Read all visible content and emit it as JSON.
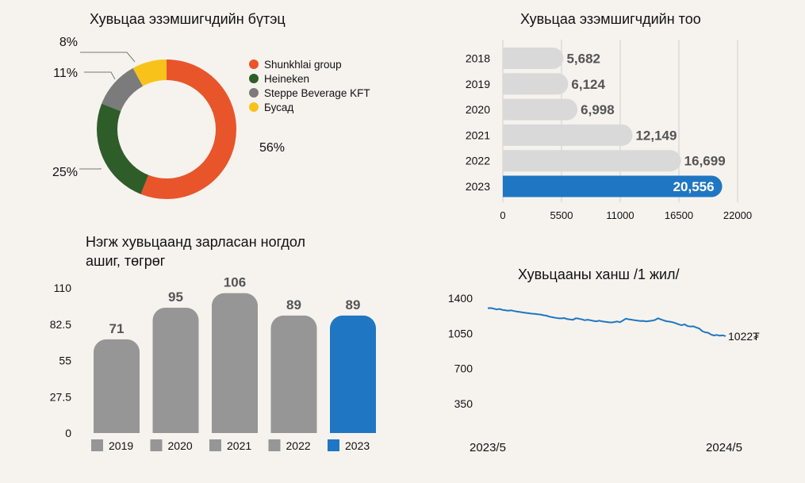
{
  "colors": {
    "background": "#f6f3ee",
    "orange": "#e9552b",
    "dark_green": "#2f5d2a",
    "gray": "#7b7b7b",
    "yellow": "#f8c21a",
    "light_gray_bar": "#d9d9d9",
    "bar_gray": "#969696",
    "blue": "#1f76c2"
  },
  "chart_data": [
    {
      "id": "structure",
      "type": "pie",
      "title": "Хувьцаа эзэмшигчдийн бүтэц",
      "labels": [
        "Shunkhlai group",
        "Heineken",
        "Steppe Beverage KFT",
        "Бусад"
      ],
      "values": [
        56,
        25,
        11,
        8
      ],
      "value_labels": [
        "56%",
        "25%",
        "11%",
        "8%"
      ],
      "colors": [
        "#e9552b",
        "#2f5d2a",
        "#7b7b7b",
        "#f8c21a"
      ],
      "legend": "right"
    },
    {
      "id": "holders",
      "type": "bar",
      "orientation": "horizontal",
      "title": "Хувьцаа эзэмшигчдийн тоо",
      "categories": [
        "2018",
        "2019",
        "2020",
        "2021",
        "2022",
        "2023"
      ],
      "values": [
        5682,
        6124,
        6998,
        12149,
        16699,
        20556
      ],
      "value_labels": [
        "5,682",
        "6,124",
        "6,998",
        "12,149",
        "16,699",
        "20,556"
      ],
      "xlim": [
        0,
        22000
      ],
      "xticks": [
        "0",
        "5500",
        "11000",
        "16500",
        "22000"
      ],
      "grid": true,
      "highlight": "2023"
    },
    {
      "id": "dividend",
      "type": "bar",
      "title": "Нэгж хувьцаанд зарласан ногдол ашиг, төгрөг",
      "title_lines": [
        "Нэгж хувьцаанд зарласан ногдол",
        "ашиг, төгрөг"
      ],
      "categories": [
        "2019",
        "2020",
        "2021",
        "2022",
        "2023"
      ],
      "values": [
        71,
        95,
        106,
        89,
        89
      ],
      "ylim": [
        0,
        110
      ],
      "yticks": [
        "0",
        "27.5",
        "55",
        "82.5",
        "110"
      ],
      "legend": "bottom",
      "highlight": "2023"
    },
    {
      "id": "price",
      "type": "line",
      "title": "Хувьцааны ханш /1 жил/",
      "x_start": "2023/5",
      "x_end": "2024/5",
      "ylim": [
        0,
        1400
      ],
      "yticks": [
        "350",
        "700",
        "1050",
        "1400"
      ],
      "end_label": "1022₮",
      "values": [
        1300,
        1302,
        1296,
        1288,
        1293,
        1284,
        1280,
        1276,
        1279,
        1272,
        1266,
        1262,
        1258,
        1254,
        1250,
        1246,
        1244,
        1240,
        1237,
        1230,
        1226,
        1216,
        1210,
        1205,
        1200,
        1198,
        1202,
        1192,
        1188,
        1185,
        1200,
        1196,
        1190,
        1180,
        1186,
        1180,
        1174,
        1170,
        1176,
        1168,
        1164,
        1160,
        1158,
        1162,
        1168,
        1160,
        1178,
        1196,
        1190,
        1186,
        1180,
        1176,
        1172,
        1174,
        1168,
        1172,
        1176,
        1183,
        1200,
        1188,
        1178,
        1170,
        1166,
        1160,
        1150,
        1140,
        1130,
        1140,
        1122,
        1118,
        1120,
        1108,
        1098,
        1072,
        1060,
        1056,
        1038,
        1028,
        1034,
        1026,
        1030,
        1022
      ],
      "grid": false
    }
  ]
}
